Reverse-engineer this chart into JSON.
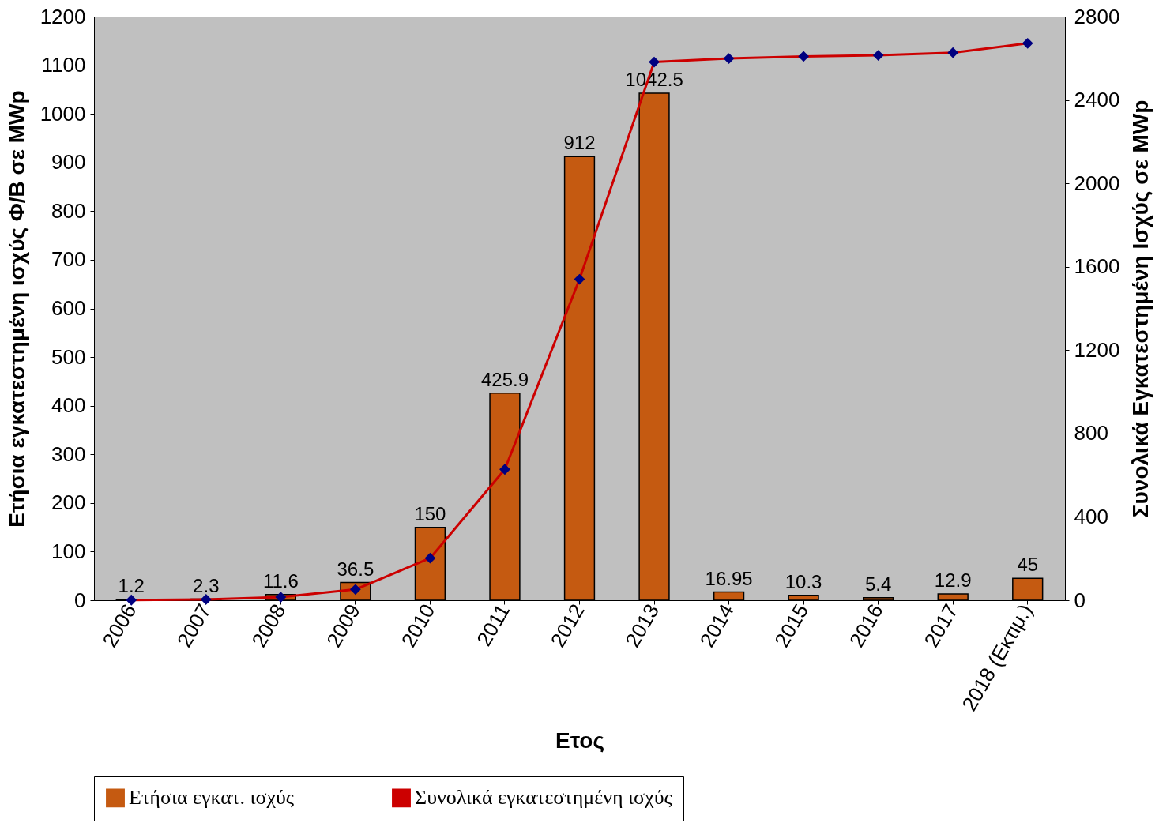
{
  "chart_data": {
    "type": "bar",
    "xlabel": "Ετος",
    "ylabel": "Ετήσια εγκατεστημένη ισχύς Φ/Β σε  MWp",
    "y2label": "Συνολικά Εγκατεστημένη Ισχύς σε MWp",
    "categories": [
      "2006",
      "2007",
      "2008",
      "2009",
      "2010",
      "2011",
      "2012",
      "2013",
      "2014",
      "2015",
      "2016",
      "2017",
      "2018 (Εκτιμ.)"
    ],
    "series": [
      {
        "name": "Ετήσια εγκατ. ισχύς",
        "color": "#c55a11",
        "values": [
          1.2,
          2.3,
          11.6,
          36.5,
          150,
          425.9,
          912,
          1042.5,
          16.95,
          10.3,
          5.4,
          12.9,
          45
        ],
        "value_labels": [
          "1.2",
          "2.3",
          "11.6",
          "36.5",
          "150",
          "425.9",
          "912",
          "1042.5",
          "16.95",
          "10.3",
          "5.4",
          "12.9",
          "45"
        ]
      },
      {
        "name": "Συνολικά εγκατεστημένη ισχύς",
        "type": "line",
        "axis": "y2",
        "color": "#cc0000",
        "marker": "diamond",
        "values": [
          1,
          4,
          15,
          52,
          202,
          628,
          1540,
          2582,
          2599,
          2609,
          2614,
          2627,
          2672
        ]
      }
    ],
    "ylim": [
      0,
      1200
    ],
    "yticks": [
      0,
      100,
      200,
      300,
      400,
      500,
      600,
      700,
      800,
      900,
      1000,
      1100,
      1200
    ],
    "y2lim": [
      0,
      2800
    ],
    "y2ticks": [
      0,
      400,
      800,
      1200,
      1600,
      2000,
      2400,
      2800
    ],
    "grid": false,
    "legend": "bottom"
  }
}
